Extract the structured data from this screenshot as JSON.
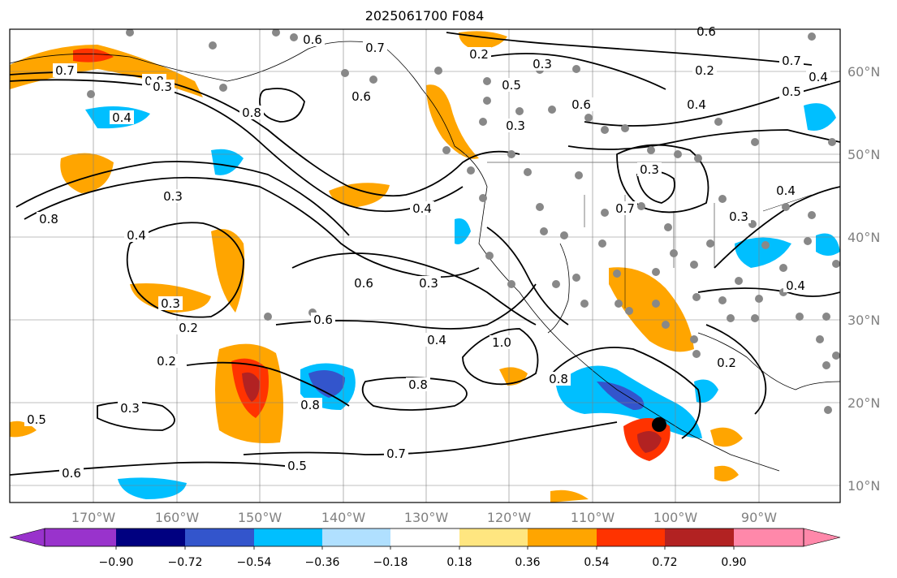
{
  "title": "2025061700 F084",
  "map": {
    "lon_ticks": [
      "170°W",
      "160°W",
      "150°W",
      "140°W",
      "130°W",
      "120°W",
      "110°W",
      "100°W",
      "90°W"
    ],
    "lat_ticks": [
      "60°N",
      "50°N",
      "40°N",
      "30°N",
      "20°N",
      "10°N"
    ],
    "contour_labels": [
      "0.7",
      "0.8",
      "0.6",
      "0.7",
      "0.2",
      "0.3",
      "0.5",
      "0.6",
      "0.7",
      "0.4",
      "0.5",
      "0.3",
      "0.8",
      "0.4",
      "0.6",
      "0.8",
      "0.4",
      "0.3",
      "0.4",
      "0.3",
      "0.2",
      "0.2",
      "0.3",
      "0.5",
      "0.6",
      "0.5",
      "0.7",
      "0.8",
      "0.6",
      "0.3",
      "0.6",
      "0.4",
      "1.0",
      "0.8",
      "0.8",
      "0.3",
      "0.7",
      "0.4",
      "0.2",
      "0.3",
      "0.4",
      "0.2",
      "0.6",
      "0.4",
      "0.3"
    ],
    "marker_note": ""
  },
  "colorbar": {
    "tick_labels": [
      "−0.90",
      "−0.72",
      "−0.54",
      "−0.36",
      "−0.18",
      "0.18",
      "0.36",
      "0.54",
      "0.72",
      "0.90"
    ],
    "colors": [
      "#9933cc",
      "#000080",
      "#3355cc",
      "#00bfff",
      "#b0e0ff",
      "#ffffff",
      "#ffe680",
      "#ffa500",
      "#ff3300",
      "#b22222",
      "#ff88aa"
    ]
  }
}
